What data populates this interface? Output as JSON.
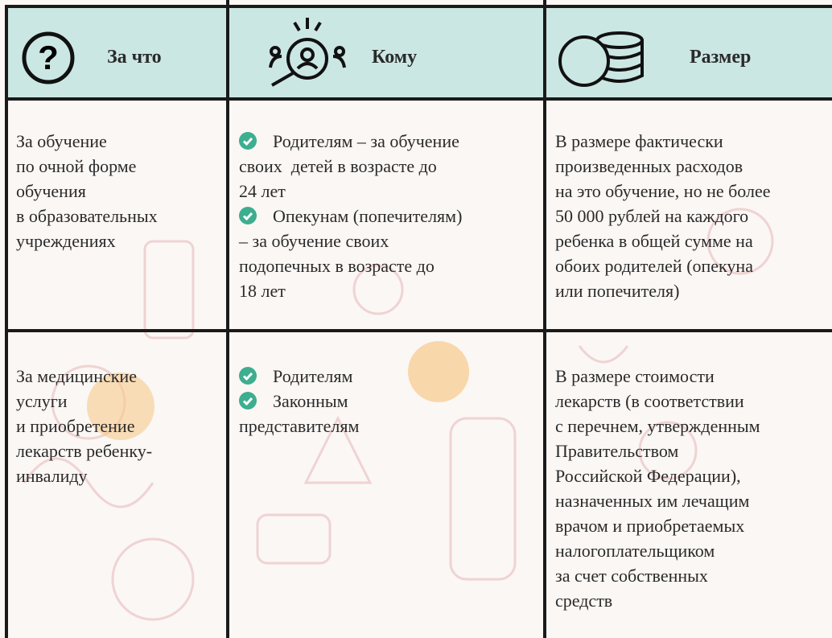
{
  "header": {
    "columns": [
      "За что",
      "Кому",
      "Размер"
    ]
  },
  "table": {
    "rows": [
      {
        "what": [
          "За обучение",
          "по очной форме",
          "обучения",
          "в образовательных",
          "учреждениях"
        ],
        "who": [
          [
            "Родителям – за обучение",
            "своих  детей в возрасте до",
            "24 лет"
          ],
          [
            "Опекунам (попечителям)",
            "– за обучение своих",
            "подопечных в возрасте до",
            "18 лет"
          ]
        ],
        "amount": [
          "В размере фактически",
          "произведенных расходов",
          "на это обучение, но не более",
          "50 000 рублей на каждого",
          "ребенка в общей сумме на",
          "обоих родителей (опекуна",
          "или попечителя)"
        ]
      },
      {
        "what": [
          "За медицинские",
          "услуги",
          "и приобретение",
          "лекарств ребенку-",
          "инвалиду"
        ],
        "who": [
          [
            "Родителям"
          ],
          [
            "Законным",
            "представителям"
          ]
        ],
        "amount": [
          "В размере стоимости",
          "лекарств (в соответствии",
          "с перечнем, утвержденным",
          "Правительством",
          "Российской Федерации),",
          "назначенных им лечащим",
          "врачом и приобретаемых",
          "налогоплательщиком",
          "за счет собственных",
          "средств"
        ]
      }
    ]
  }
}
